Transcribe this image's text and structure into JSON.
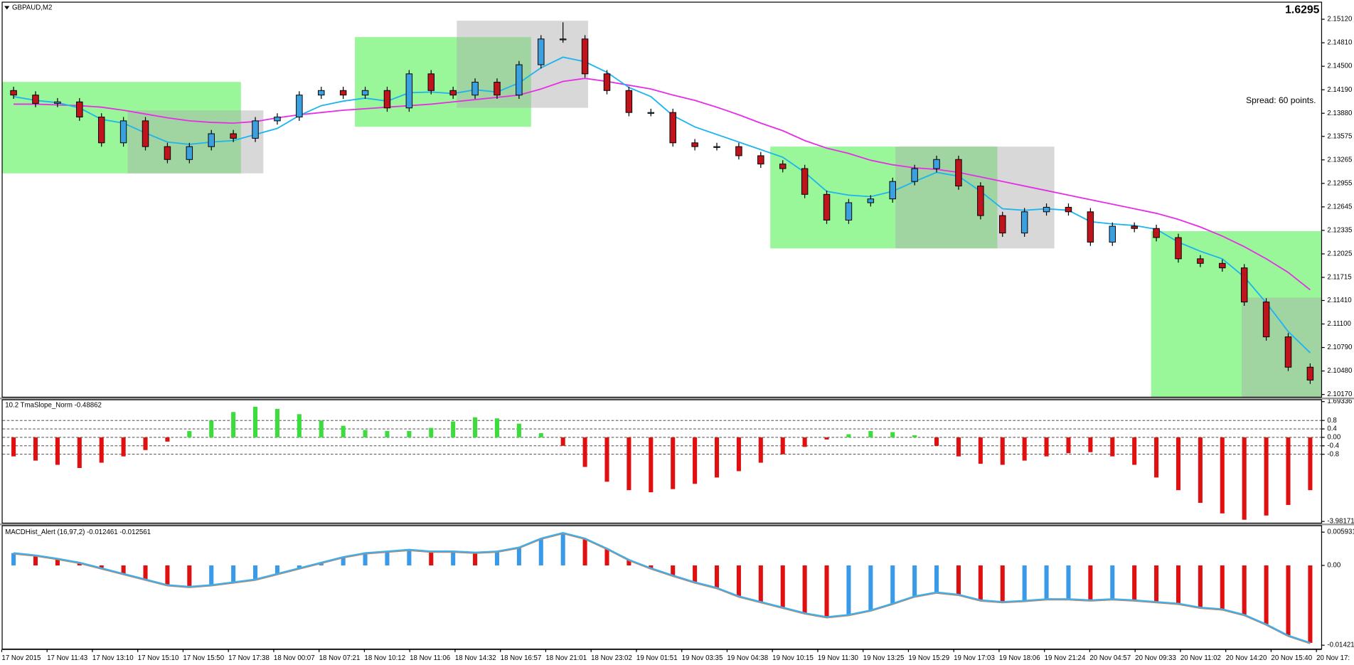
{
  "chart_data": [
    {
      "type": "candlestick",
      "title": "GBPAUD,M2",
      "price": 1.6295,
      "spread_label": "Spread: 60 points.",
      "open": [
        2.1418,
        2.1412,
        2.1401,
        2.1403,
        2.1383,
        2.1349,
        2.1378,
        2.1344,
        2.1327,
        2.1344,
        2.1361,
        2.1355,
        2.1378,
        2.1383,
        2.1412,
        2.1418,
        2.1412,
        2.1418,
        2.1395,
        2.144,
        2.1418,
        2.1412,
        2.1429,
        2.1412,
        2.1452,
        2.1486,
        2.1486,
        2.144,
        2.1418,
        2.1389,
        2.1389,
        2.1349,
        2.1344,
        2.1344,
        2.1332,
        2.1321,
        2.1315,
        2.1281,
        2.1247,
        2.127,
        2.1275,
        2.1298,
        2.1315,
        2.1327,
        2.1292,
        2.1253,
        2.123,
        2.1258,
        2.1264,
        2.1258,
        2.1218,
        2.1239,
        2.1236,
        2.1224,
        2.1196,
        2.119,
        2.1184,
        2.1139,
        2.1093,
        2.1053
      ],
      "high": [
        2.1423,
        2.1417,
        2.1408,
        2.1408,
        2.1388,
        2.1383,
        2.1383,
        2.1349,
        2.1349,
        2.1366,
        2.1366,
        2.1383,
        2.1388,
        2.1417,
        2.1423,
        2.1423,
        2.1423,
        2.1423,
        2.1445,
        2.1445,
        2.1423,
        2.1434,
        2.1434,
        2.1457,
        2.1491,
        2.1508,
        2.1491,
        2.1445,
        2.1423,
        2.1394,
        2.1394,
        2.1354,
        2.1349,
        2.1349,
        2.1337,
        2.1326,
        2.132,
        2.1286,
        2.1275,
        2.128,
        2.1303,
        2.132,
        2.1332,
        2.1332,
        2.1297,
        2.1258,
        2.1263,
        2.1269,
        2.1269,
        2.1263,
        2.1244,
        2.1244,
        2.1241,
        2.1229,
        2.1201,
        2.1195,
        2.1189,
        2.1144,
        2.1098,
        2.1058
      ],
      "low": [
        2.1407,
        2.1396,
        2.1396,
        2.1378,
        2.1344,
        2.1344,
        2.1339,
        2.1322,
        2.1322,
        2.1339,
        2.135,
        2.135,
        2.1373,
        2.1378,
        2.1407,
        2.1407,
        2.1407,
        2.139,
        2.139,
        2.1413,
        2.1407,
        2.1407,
        2.1407,
        2.1407,
        2.1447,
        2.1481,
        2.1435,
        2.1413,
        2.1384,
        2.1384,
        2.1344,
        2.1339,
        2.1339,
        2.1327,
        2.1316,
        2.131,
        2.1276,
        2.1242,
        2.1242,
        2.1265,
        2.127,
        2.1293,
        2.131,
        2.1287,
        2.1248,
        2.1225,
        2.1225,
        2.1253,
        2.1253,
        2.1213,
        2.1213,
        2.1231,
        2.1219,
        2.1191,
        2.1185,
        2.1179,
        2.1134,
        2.1088,
        2.1048,
        2.1031
      ],
      "close": [
        2.1412,
        2.1401,
        2.1403,
        2.1383,
        2.1349,
        2.1378,
        2.1344,
        2.1327,
        2.1344,
        2.1361,
        2.1355,
        2.1378,
        2.1383,
        2.1412,
        2.1418,
        2.1412,
        2.1418,
        2.1395,
        2.144,
        2.1418,
        2.1412,
        2.1429,
        2.1412,
        2.1452,
        2.1486,
        2.1486,
        2.144,
        2.1418,
        2.1389,
        2.1389,
        2.1349,
        2.1344,
        2.1344,
        2.1332,
        2.1321,
        2.1315,
        2.1281,
        2.1247,
        2.127,
        2.1275,
        2.1298,
        2.1315,
        2.1327,
        2.1292,
        2.1253,
        2.123,
        2.1258,
        2.1264,
        2.1258,
        2.1218,
        2.1239,
        2.1236,
        2.1224,
        2.1196,
        2.119,
        2.1184,
        2.1139,
        2.1093,
        2.1053,
        2.1036
      ],
      "ma_fast": [
        2.141,
        2.1405,
        2.1402,
        2.1395,
        2.138,
        2.1375,
        2.1362,
        2.135,
        2.1347,
        2.135,
        2.1352,
        2.136,
        2.1368,
        2.1385,
        2.1398,
        2.1404,
        2.1408,
        2.1404,
        2.1415,
        2.1416,
        2.1414,
        2.1419,
        2.1416,
        2.1428,
        2.1448,
        2.1462,
        2.1456,
        2.1442,
        2.1422,
        2.141,
        2.1385,
        2.137,
        2.136,
        2.135,
        2.134,
        2.133,
        2.131,
        2.1285,
        2.128,
        2.1278,
        2.1285,
        2.1298,
        2.131,
        2.1305,
        2.1285,
        2.1262,
        2.126,
        2.1262,
        2.126,
        2.1245,
        2.1242,
        2.124,
        2.1235,
        2.1218,
        2.1206,
        2.1196,
        2.1172,
        2.1138,
        2.11,
        2.1072
      ],
      "ma_slow": [
        2.14,
        2.14,
        2.1399,
        2.1398,
        2.1396,
        2.1392,
        2.1387,
        2.1382,
        2.1378,
        2.1376,
        2.1375,
        2.1377,
        2.1382,
        2.1386,
        2.1389,
        2.1392,
        2.1394,
        2.1396,
        2.1398,
        2.14,
        2.1403,
        2.1406,
        2.1409,
        2.1412,
        2.142,
        2.143,
        2.1434,
        2.143,
        2.1425,
        2.142,
        2.1412,
        2.1405,
        2.1396,
        2.1386,
        2.1375,
        2.1365,
        2.1352,
        2.1342,
        2.1335,
        2.1326,
        2.132,
        2.1316,
        2.1314,
        2.131,
        2.1304,
        2.1298,
        2.1292,
        2.1286,
        2.128,
        2.1274,
        2.1268,
        2.1262,
        2.1256,
        2.1248,
        2.1238,
        2.1226,
        2.1212,
        2.1196,
        2.1178,
        2.1155
      ],
      "up_color": "#3aa0e0",
      "down_color": "#c0141c",
      "ma_fast_color": "#1eb4f0",
      "ma_slow_color": "#e62ee6",
      "ylim": [
        2.1014,
        2.1534
      ],
      "yticks": [
        {
          "value": 2.1017,
          "label": "2.10170"
        },
        {
          "value": 2.1048,
          "label": "2.10480"
        },
        {
          "value": 2.1079,
          "label": "2.10790"
        },
        {
          "value": 2.111,
          "label": "2.11100"
        },
        {
          "value": 2.1141,
          "label": "2.11410"
        },
        2.11715,
        2.12025,
        2.12335,
        2.12645,
        2.12955,
        2.13265,
        2.13575,
        {
          "value": 2.1388,
          "label": "2.13880"
        },
        {
          "value": 2.1419,
          "label": "2.14190"
        },
        {
          "value": 2.145,
          "label": "2.14500"
        },
        {
          "value": 2.1481,
          "label": "2.14810"
        },
        {
          "value": 2.1512,
          "label": "2.15120"
        }
      ],
      "x_labels": [
        "17 Nov 2015",
        "17 Nov 11:43",
        "17 Nov 13:10",
        "17 Nov 15:10",
        "17 Nov 15:50",
        "17 Nov 17:38",
        "18 Nov 00:07",
        "18 Nov 07:21",
        "18 Nov 10:12",
        "18 Nov 11:06",
        "18 Nov 14:32",
        "18 Nov 16:57",
        "18 Nov 21:01",
        "18 Nov 23:02",
        "19 Nov 01:51",
        "19 Nov 03:35",
        "19 Nov 04:38",
        "19 Nov 10:15",
        "19 Nov 11:30",
        "19 Nov 13:25",
        "19 Nov 15:29",
        "19 Nov 17:03",
        "19 Nov 18:06",
        "19 Nov 21:24",
        "20 Nov 04:57",
        "20 Nov 09:33",
        "20 Nov 11:02",
        "20 Nov 14:20",
        "20 Nov 15:40",
        "20 Nov 17:"
      ]
    },
    {
      "type": "bar",
      "title": "10.2 TmaSlope_Norm -0.48862",
      "values": [
        -0.9,
        -1.1,
        -1.3,
        -1.45,
        -1.2,
        -0.9,
        -0.6,
        -0.2,
        0.3,
        0.8,
        1.2,
        1.45,
        1.35,
        1.1,
        0.8,
        0.55,
        0.35,
        0.3,
        0.3,
        0.45,
        0.75,
        0.95,
        0.9,
        0.65,
        0.2,
        -0.4,
        -1.4,
        -2.1,
        -2.5,
        -2.6,
        -2.45,
        -2.2,
        -1.9,
        -1.6,
        -1.2,
        -0.8,
        -0.45,
        -0.1,
        0.15,
        0.3,
        0.25,
        0.1,
        -0.4,
        -0.9,
        -1.25,
        -1.3,
        -1.1,
        -0.9,
        -0.75,
        -0.7,
        -0.9,
        -1.3,
        -1.9,
        -2.5,
        -3.1,
        -3.6,
        -3.9,
        -3.7,
        -3.2,
        -2.5
      ],
      "up_color": "#3ddc3d",
      "down_color": "#e01010",
      "ylim": [
        -4.04,
        1.76
      ],
      "yticks": [
        1.69336,
        0.8,
        0.4,
        {
          "value": 0,
          "label": "0.00"
        },
        -0.4,
        -0.8,
        -3.98171
      ],
      "level_lines": true
    },
    {
      "type": "bar",
      "title": "MACDHist_Alert (16,97,2) -0.012461 -0.012561",
      "values": [
        0.0022,
        0.0018,
        0.0012,
        0.0005,
        -0.0005,
        -0.0015,
        -0.0025,
        -0.0035,
        -0.0038,
        -0.0035,
        -0.003,
        -0.0025,
        -0.0015,
        -0.0005,
        0.0005,
        0.0015,
        0.0022,
        0.0025,
        0.0028,
        0.0025,
        0.0025,
        0.0023,
        0.0025,
        0.0032,
        0.0048,
        0.0058,
        0.0048,
        0.003,
        0.001,
        -0.0005,
        -0.0018,
        -0.003,
        -0.004,
        -0.0055,
        -0.0065,
        -0.0075,
        -0.0085,
        -0.0092,
        -0.0088,
        -0.008,
        -0.0068,
        -0.0055,
        -0.0048,
        -0.0052,
        -0.0062,
        -0.0065,
        -0.0063,
        -0.006,
        -0.006,
        -0.0062,
        -0.006,
        -0.0062,
        -0.0065,
        -0.0068,
        -0.0075,
        -0.0078,
        -0.0088,
        -0.0105,
        -0.0125,
        -0.0138
      ],
      "rise_color": "#3a9ae8",
      "fall_color": "#e01010",
      "line_color": "#40aee8",
      "line_shadow_color": "#e07840",
      "ylim": [
        -0.01482,
        0.007
      ],
      "yticks": [
        0.005931,
        {
          "value": 0,
          "label": "0.00"
        },
        -0.01421
      ]
    }
  ]
}
